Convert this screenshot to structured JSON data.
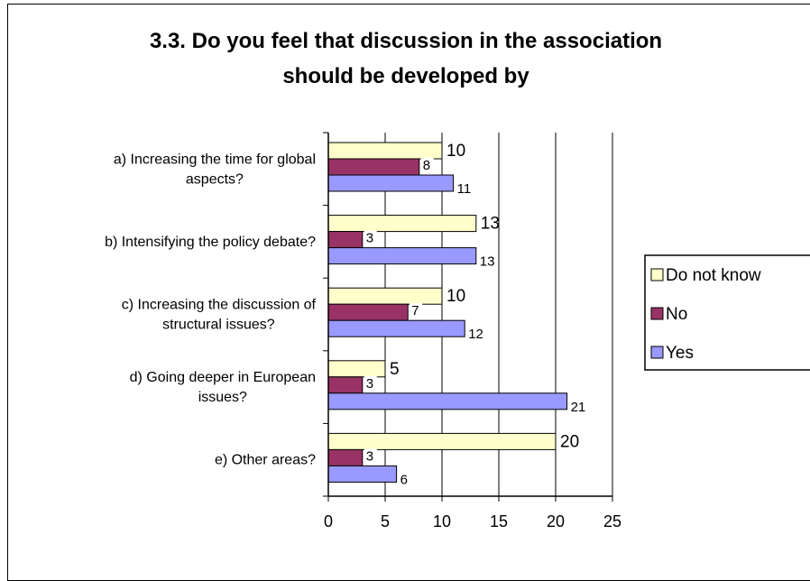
{
  "chart_data": {
    "type": "bar",
    "orientation": "horizontal",
    "title": "3.3. Do you feel that discussion in the association should be developed by",
    "title_lines": [
      "3.3. Do you feel that discussion in the association",
      "should be developed by"
    ],
    "categories": [
      [
        "a) Increasing the time for global",
        "aspects?"
      ],
      [
        "b) Intensifying the policy debate?"
      ],
      [
        "c) Increasing the discussion of",
        "structural issues?"
      ],
      [
        "d) Going deeper in European",
        "issues?"
      ],
      [
        "e) Other areas?"
      ]
    ],
    "series": [
      {
        "name": "Do not know",
        "color": "#ffffcc",
        "values": [
          10,
          13,
          10,
          5,
          20
        ]
      },
      {
        "name": "No",
        "color": "#993366",
        "values": [
          8,
          3,
          7,
          3,
          3
        ]
      },
      {
        "name": "Yes",
        "color": "#9999ff",
        "values": [
          11,
          13,
          12,
          21,
          6
        ]
      }
    ],
    "xlim": [
      0,
      25
    ],
    "xticks": [
      "0",
      "5",
      "10",
      "15",
      "20",
      "25"
    ],
    "grid": true,
    "legend_position": "right"
  }
}
